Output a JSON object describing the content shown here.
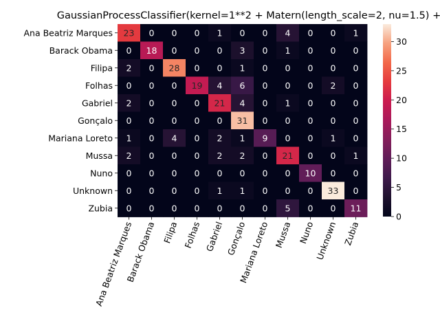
{
  "chart_data": {
    "type": "heatmap",
    "title": "GaussianProcessClassifier(kernel=1**2 + Matern(length_scale=2, nu=1.5) +",
    "row_labels": [
      "Ana Beatriz Marques",
      "Barack Obama",
      "Filipa",
      "Folhas",
      "Gabriel",
      "Gonçalo",
      "Mariana Loreto",
      "Mussa",
      "Nuno",
      "Unknown",
      "Zubia"
    ],
    "col_labels": [
      "Ana Beatriz Marques",
      "Barack Obama",
      "Filipa",
      "Folhas",
      "Gabriel",
      "Gonçalo",
      "Mariana Loreto",
      "Mussa",
      "Nuno",
      "Unknown",
      "Zubia"
    ],
    "values": [
      [
        23,
        0,
        0,
        0,
        1,
        0,
        0,
        4,
        0,
        0,
        1
      ],
      [
        0,
        18,
        0,
        0,
        0,
        3,
        0,
        1,
        0,
        0,
        0
      ],
      [
        2,
        0,
        28,
        0,
        0,
        1,
        0,
        0,
        0,
        0,
        0
      ],
      [
        0,
        0,
        0,
        19,
        4,
        6,
        0,
        0,
        0,
        2,
        0
      ],
      [
        2,
        0,
        0,
        0,
        21,
        4,
        0,
        1,
        0,
        0,
        0
      ],
      [
        0,
        0,
        0,
        0,
        0,
        31,
        0,
        0,
        0,
        0,
        0
      ],
      [
        1,
        0,
        4,
        0,
        2,
        1,
        9,
        0,
        0,
        1,
        0
      ],
      [
        2,
        0,
        0,
        0,
        2,
        2,
        0,
        21,
        0,
        0,
        1
      ],
      [
        0,
        0,
        0,
        0,
        0,
        0,
        0,
        0,
        10,
        0,
        0
      ],
      [
        0,
        0,
        0,
        0,
        1,
        1,
        0,
        0,
        0,
        33,
        0
      ],
      [
        0,
        0,
        0,
        0,
        0,
        0,
        0,
        5,
        0,
        0,
        11
      ]
    ],
    "colorbar": {
      "min": 0,
      "max": 33,
      "ticks": [
        0,
        5,
        10,
        15,
        20,
        25,
        30
      ],
      "colormap": "rocket"
    },
    "annotate_cells": true,
    "xtick_rotation": "70 degrees"
  }
}
